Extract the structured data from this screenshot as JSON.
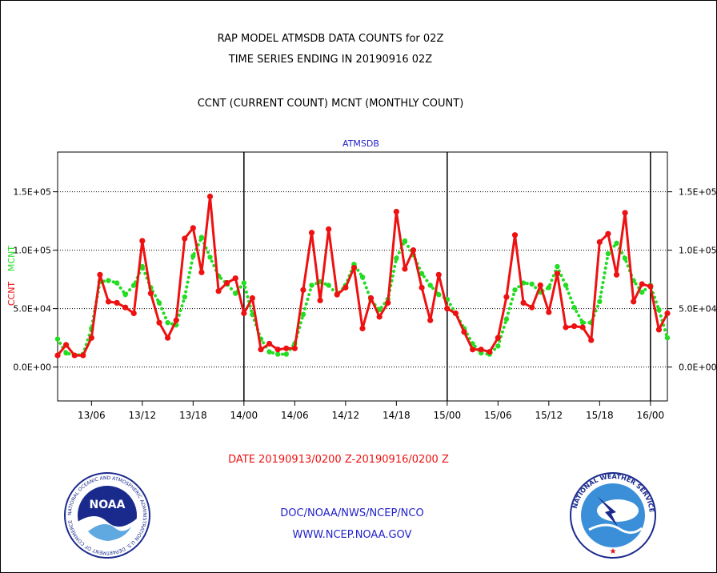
{
  "header": {
    "title_line1": "RAP MODEL ATMSDB DATA COUNTS for 02Z",
    "title_line2": "TIME SERIES ENDING IN 20190916 02Z",
    "subtitle": "CCNT (CURRENT COUNT) MCNT (MONTHLY COUNT)"
  },
  "footer": {
    "date_range": "DATE 20190913/0200 Z-20190916/0200 Z",
    "org_line": "DOC/NOAA/NWS/NCEP/NCO",
    "url_line": "WWW.NCEP.NOAA.GOV",
    "noaa_logo_text": "NOAA",
    "noaa_ring_text": "NATIONAL OCEANIC AND ATMOSPHERIC ADMINISTRATION U.S. DEPARTMENT OF COMMERCE",
    "nws_ring_text": "NATIONAL WEATHER SERVICE"
  },
  "colors": {
    "ccnt": "#ee1111",
    "mcnt": "#22dd22",
    "title_text": "#000000",
    "date_text": "#ee1111",
    "link_text": "#2222cc"
  },
  "chart_data": {
    "type": "line",
    "title": "ATMSDB",
    "left_axis_label_ccnt": "CCNT",
    "left_axis_label_mcnt": "MCNT",
    "xlim": [
      0,
      72
    ],
    "ylim": [
      -29000,
      184000
    ],
    "x_ticks": [
      {
        "x": 4,
        "label": "13/06"
      },
      {
        "x": 10,
        "label": "13/12"
      },
      {
        "x": 16,
        "label": "13/18"
      },
      {
        "x": 22,
        "label": "14/00"
      },
      {
        "x": 28,
        "label": "14/06"
      },
      {
        "x": 34,
        "label": "14/12"
      },
      {
        "x": 40,
        "label": "14/18"
      },
      {
        "x": 46,
        "label": "15/00"
      },
      {
        "x": 52,
        "label": "15/06"
      },
      {
        "x": 58,
        "label": "15/12"
      },
      {
        "x": 64,
        "label": "15/18"
      },
      {
        "x": 70,
        "label": "16/00"
      }
    ],
    "day_boundaries": [
      22,
      46,
      70
    ],
    "y_ticks_left": [
      {
        "y": 0,
        "label": "0.0E+00"
      },
      {
        "y": 50000,
        "label": "5.0E+04"
      },
      {
        "y": 100000,
        "label": "1.0E+05"
      },
      {
        "y": 150000,
        "label": "1.5E+05"
      }
    ],
    "y_ticks_right": [
      {
        "y": 0,
        "label": "0.0E+00"
      },
      {
        "y": 50000,
        "label": "5.0E+04"
      },
      {
        "y": 100000,
        "label": "1.0E+05"
      },
      {
        "y": 150000,
        "label": "1.5E+05"
      }
    ],
    "grid": "horizontal dotted",
    "x": [
      0,
      1,
      2,
      3,
      4,
      5,
      6,
      7,
      8,
      9,
      10,
      11,
      12,
      13,
      14,
      15,
      16,
      17,
      18,
      19,
      20,
      21,
      22,
      23,
      24,
      25,
      26,
      27,
      28,
      29,
      30,
      31,
      32,
      33,
      34,
      35,
      36,
      37,
      38,
      39,
      40,
      41,
      42,
      43,
      44,
      45,
      46,
      47,
      48,
      49,
      50,
      51,
      52,
      53,
      54,
      55,
      56,
      57,
      58,
      59,
      60,
      61,
      62,
      63,
      64,
      65,
      66,
      67,
      68,
      69,
      70,
      71,
      72
    ],
    "series": [
      {
        "name": "CCNT",
        "values": [
          10000,
          19000,
          10000,
          10000,
          25000,
          79000,
          56000,
          55000,
          51000,
          46000,
          108000,
          63000,
          38000,
          25000,
          40000,
          110000,
          119000,
          81000,
          146000,
          65000,
          72000,
          76000,
          46000,
          59000,
          15000,
          20000,
          15000,
          16000,
          16000,
          66000,
          115000,
          57000,
          118000,
          62000,
          68000,
          85000,
          33000,
          59000,
          43000,
          55000,
          133000,
          84000,
          100000,
          68000,
          40000,
          79000,
          50000,
          46000,
          30000,
          15000,
          15000,
          13000,
          25000,
          60000,
          113000,
          55000,
          51000,
          70000,
          47000,
          80000,
          34000,
          35000,
          34000,
          23000,
          107000,
          114000,
          79000,
          132000,
          56000,
          71000,
          69000,
          32000,
          46000
        ]
      },
      {
        "name": "MCNT",
        "values": [
          24000,
          12000,
          10000,
          11000,
          33000,
          73000,
          74000,
          72000,
          62000,
          70000,
          86000,
          68000,
          55000,
          38000,
          36000,
          60000,
          95000,
          111000,
          94000,
          78000,
          71000,
          63000,
          72000,
          45000,
          24000,
          13000,
          11000,
          11000,
          20000,
          45000,
          70000,
          73000,
          70000,
          62000,
          70000,
          88000,
          77000,
          57000,
          49000,
          58000,
          93000,
          108000,
          96000,
          80000,
          70000,
          62000,
          58000,
          46000,
          33000,
          20000,
          12000,
          11000,
          18000,
          41000,
          66000,
          72000,
          71000,
          64000,
          68000,
          86000,
          70000,
          51000,
          38000,
          38000,
          56000,
          97000,
          106000,
          93000,
          74000,
          64000,
          70000,
          49000,
          25000
        ]
      }
    ]
  }
}
